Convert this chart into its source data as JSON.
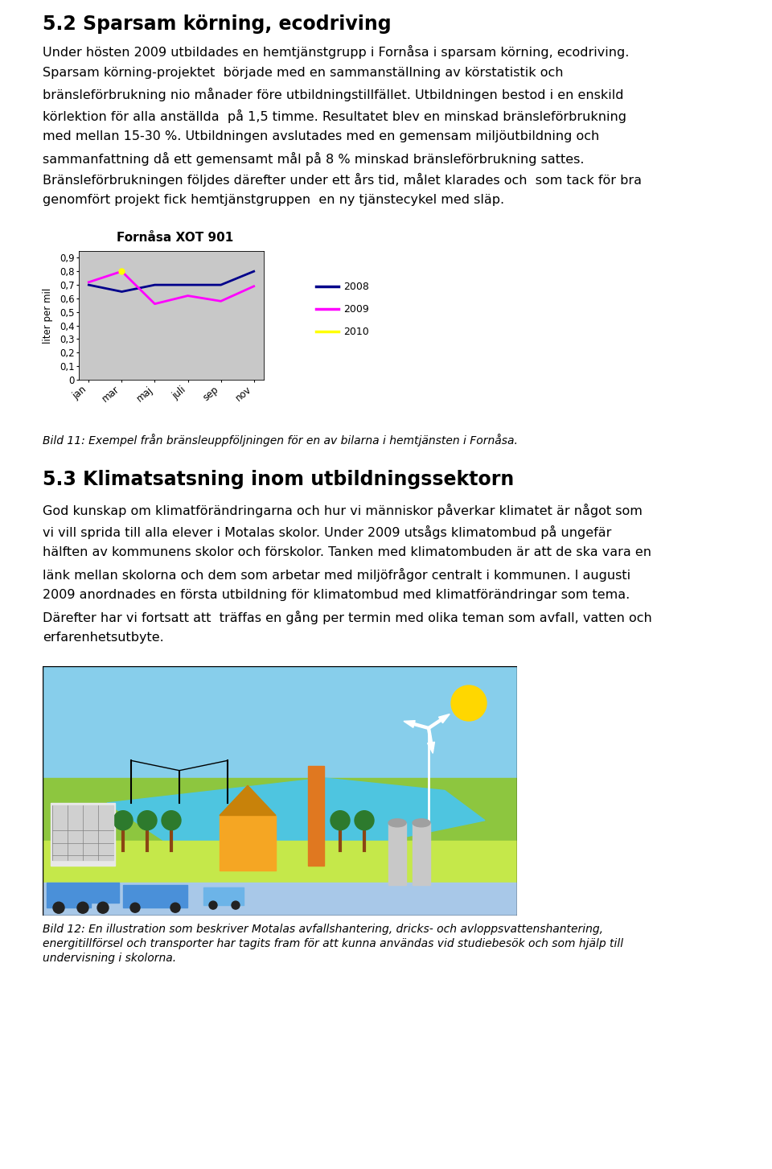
{
  "title": "5.2 Sparsam körning, ecodriving",
  "para1_lines": [
    "Under hösten 2009 utbildades en hemtjänstgrupp i Fornåsa i sparsam körning, ecodriving.",
    "Sparsam körning-projektet  började med en sammanställning av körstatistik och",
    "bränsleförbrukning nio månader före utbildningstillfället. Utbildningen bestod i en enskild",
    "körlektion för alla anställda  på 1,5 timme. Resultatet blev en minskad bränsleförbrukning",
    "med mellan 15-30 %. Utbildningen avslutades med en gemensam miljöutbildning och",
    "sammanfattning då ett gemensamt mål på 8 % minskad bränsleförbrukning sattes.",
    "Bränsleförbrukningen följdes därefter under ett års tid, målet klarades och  som tack för bra",
    "genomfört projekt fick hemtjänstgruppen  en ny tjänstecykel med släp."
  ],
  "chart_title": "Fornåsa XOT 901",
  "x_labels": [
    "jan",
    "mar",
    "maj",
    "juli",
    "sep",
    "nov"
  ],
  "ylabel": "liter per mil",
  "yticks": [
    0,
    0.1,
    0.2,
    0.3,
    0.4,
    0.5,
    0.6,
    0.7,
    0.8,
    0.9
  ],
  "series_2008": [
    0.7,
    0.65,
    0.7,
    0.7,
    0.7,
    0.8
  ],
  "series_2009": [
    0.72,
    0.8,
    0.56,
    0.62,
    0.58,
    0.69
  ],
  "series_2010_x": [
    1
  ],
  "series_2010_y": [
    0.8
  ],
  "color_2008": "#00008B",
  "color_2009": "#FF00FF",
  "color_2010": "#FFFF00",
  "caption1": "Bild 11: Exempel från bränsleuppföljningen för en av bilarna i hemtjänsten i Fornåsa.",
  "title2": "5.3 Klimatsatsning inom utbildningssektorn",
  "para2_lines": [
    "God kunskap om klimatförändringarna och hur vi människor påverkar klimatet är något som",
    "vi vill sprida till alla elever i Motalas skolor. Under 2009 utsågs klimatombud på ungefär",
    "hälften av kommunens skolor och förskolor. Tanken med klimatombuden är att de ska vara en",
    "länk mellan skolorna och dem som arbetar med miljöfrågor centralt i kommunen. I augusti",
    "2009 anordnades en första utbildning för klimatombud med klimatförändringar som tema.",
    "Därefter har vi fortsatt att  träffas en gång per termin med olika teman som avfall, vatten och",
    "erfarenhetsutbyte."
  ],
  "caption2_lines": [
    "Bild 12: En illustration som beskriver Motalas avfallshantering, dricks- och avloppsvattenshantering,",
    "energitillförsel och transporter har tagits fram för att kunna användas vid studiebesök och som hjälp till",
    "undervisning i skolorna."
  ],
  "bg_color": "#ffffff",
  "chart_bg": "#c8c8c8",
  "text_color": "#000000",
  "body_fontsize": 11.5,
  "title_fontsize": 17,
  "title2_fontsize": 17,
  "caption_fontsize": 10
}
